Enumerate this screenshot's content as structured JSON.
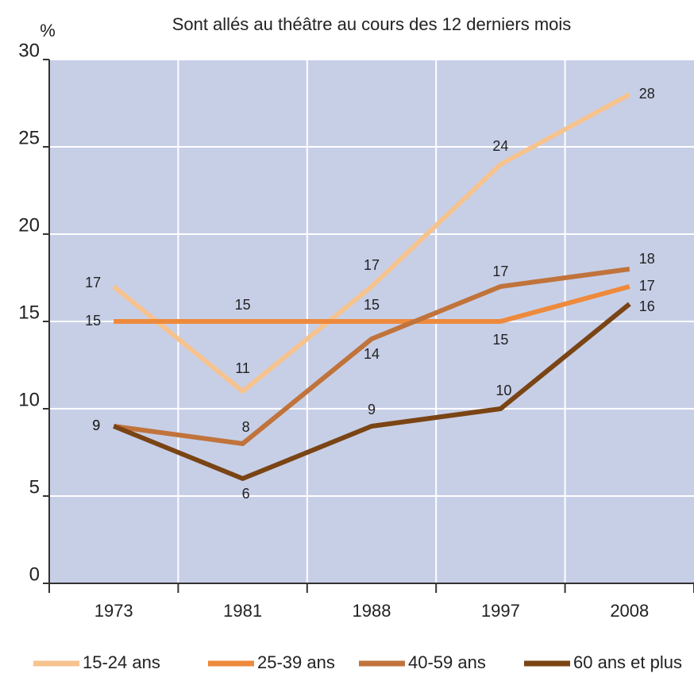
{
  "chart_data": {
    "type": "line",
    "title": "Sont allés au théâtre au cours des 12 derniers mois",
    "y_label": "%",
    "categories": [
      "1973",
      "1981",
      "1988",
      "1997",
      "2008"
    ],
    "series": [
      {
        "name": "15-24 ans",
        "color": "#f6c38f",
        "values": [
          17,
          11,
          17,
          24,
          28
        ]
      },
      {
        "name": "25-39 ans",
        "color": "#ee8a3c",
        "values": [
          15,
          15,
          15,
          15,
          17
        ]
      },
      {
        "name": "40-59 ans",
        "color": "#c0733b",
        "values": [
          9,
          8,
          14,
          17,
          18
        ]
      },
      {
        "name": "60 ans et plus",
        "color": "#7a4414",
        "values": [
          9,
          6,
          9,
          10,
          16
        ]
      }
    ],
    "ylim": [
      0,
      30
    ],
    "yticks": [
      0,
      5,
      10,
      15,
      20,
      25,
      30
    ],
    "grid": true
  }
}
